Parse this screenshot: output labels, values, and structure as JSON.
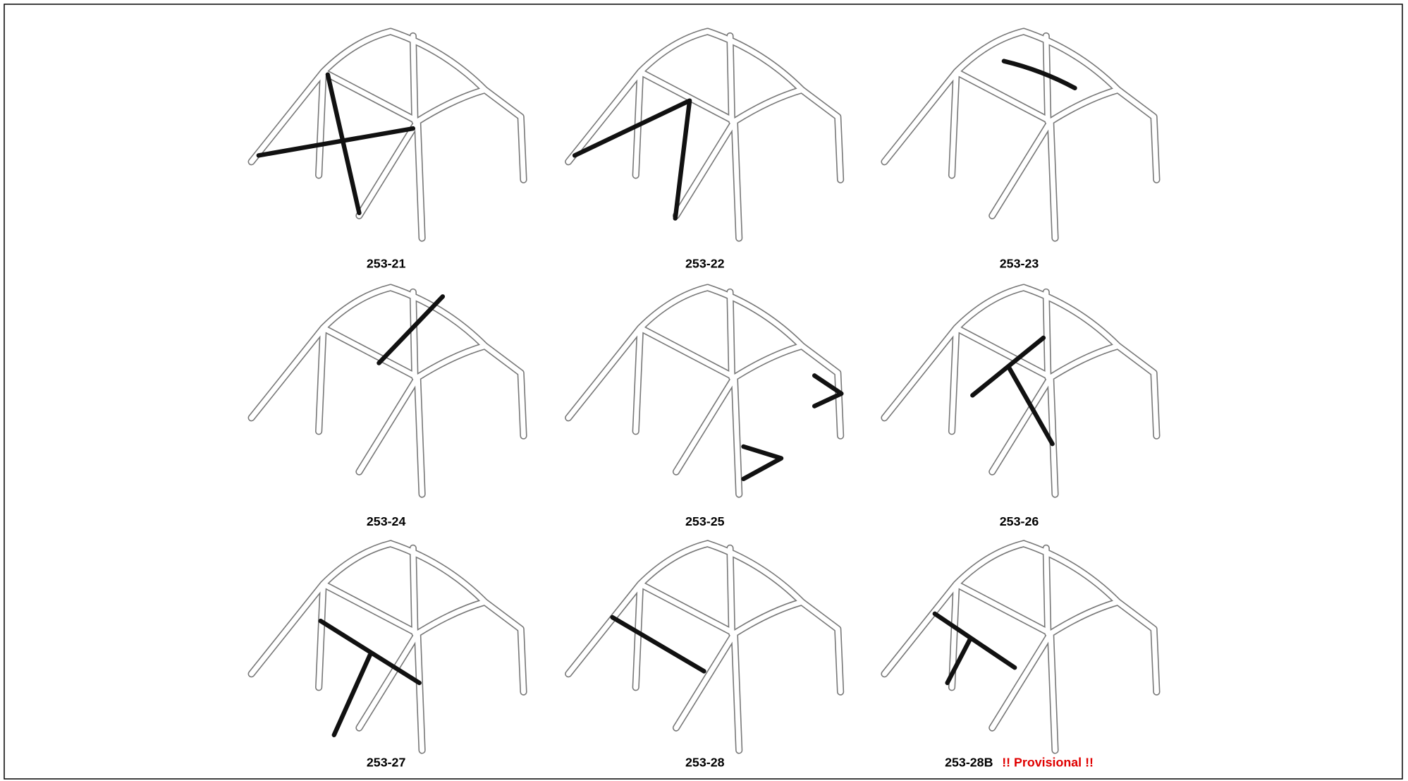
{
  "figures": [
    {
      "label": "253-21"
    },
    {
      "label": "253-22"
    },
    {
      "label": "253-23"
    },
    {
      "label": "253-24"
    },
    {
      "label": "253-25"
    },
    {
      "label": "253-26"
    },
    {
      "label": "253-27"
    },
    {
      "label": "253-28"
    },
    {
      "label": "253-28B",
      "note": "!! Provisional !!"
    }
  ]
}
